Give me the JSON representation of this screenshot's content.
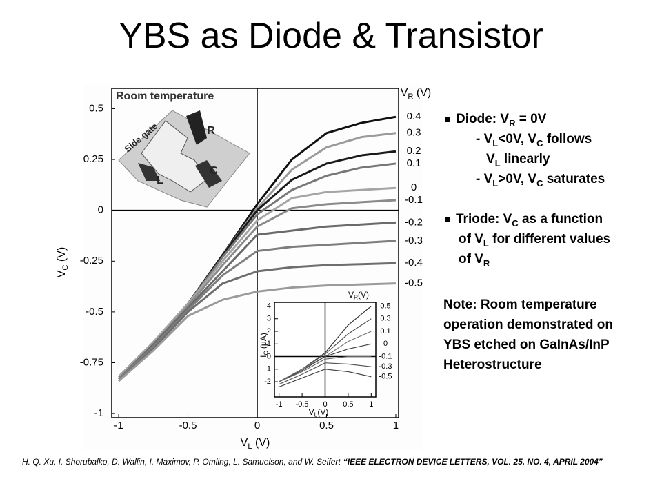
{
  "title": "YBS as Diode & Transistor",
  "bullets": [
    {
      "lines": [
        [
          "Diode: V",
          {
            "sub": "R"
          },
          " = 0V"
        ],
        [
          "- V",
          {
            "sub": "L"
          },
          "<0V, V",
          {
            "sub": "C"
          },
          " follows"
        ],
        [
          "V",
          {
            "sub": "L"
          },
          " linearly"
        ],
        [
          "- V",
          {
            "sub": "L"
          },
          ">0V, V",
          {
            "sub": "C"
          },
          " saturates"
        ]
      ]
    },
    {
      "lines": [
        [
          "Triode: V",
          {
            "sub": "C"
          },
          " as a function"
        ],
        [
          "of V",
          {
            "sub": "L"
          },
          " for different values"
        ],
        [
          "of V",
          {
            "sub": "R"
          }
        ]
      ]
    }
  ],
  "note": [
    "Note: Room temperature",
    "operation demonstrated on",
    "YBS etched on GaInAs/InP",
    "Heterostructure"
  ],
  "citation": {
    "authors": "H. Q. Xu, I. Shorubalko, D. Wallin, I. Maximov, P. Omling, L. Samuelson, and W. Seifert",
    "source": "“IEEE ELECTRON DEVICE LETTERS, VOL. 25, NO. 4, APRIL 2004”"
  },
  "chart_data": [
    {
      "type": "line",
      "annotation": "Room temperature",
      "device_labels": [
        "Side gate",
        "R",
        "L",
        "C"
      ],
      "legend_title": [
        "V",
        {
          "sub": "R"
        },
        " (V)"
      ],
      "xlabel": [
        "V",
        {
          "sub": "L"
        },
        " (V)"
      ],
      "ylabel": [
        "V",
        {
          "sub": "C"
        },
        " (V)"
      ],
      "xlim": [
        -1.05,
        1.02
      ],
      "ylim": [
        -1.02,
        0.6
      ],
      "xticks": [
        -1,
        -0.5,
        0,
        0.5,
        1
      ],
      "yticks": [
        0.5,
        0.25,
        0,
        -0.25,
        -0.5,
        -0.75,
        -1
      ],
      "x": [
        -1,
        -0.75,
        -0.5,
        -0.25,
        0,
        0.25,
        0.5,
        0.75,
        1
      ],
      "series": [
        {
          "name": "0.4",
          "color": "#111111",
          "values": [
            -0.82,
            -0.65,
            -0.46,
            -0.22,
            0.03,
            0.25,
            0.38,
            0.43,
            0.46
          ]
        },
        {
          "name": "0.3",
          "color": "#9a9a9a",
          "values": [
            -0.82,
            -0.65,
            -0.46,
            -0.22,
            0.01,
            0.2,
            0.31,
            0.36,
            0.38
          ]
        },
        {
          "name": "0.2",
          "color": "#1a1a1a",
          "values": [
            -0.82,
            -0.65,
            -0.46,
            -0.22,
            0.0,
            0.15,
            0.23,
            0.27,
            0.29
          ]
        },
        {
          "name": "0.1",
          "color": "#777777",
          "values": [
            -0.82,
            -0.65,
            -0.46,
            -0.23,
            -0.02,
            0.1,
            0.17,
            0.21,
            0.23
          ]
        },
        {
          "name": "0",
          "color": "#a5a5a5",
          "values": [
            -0.82,
            -0.65,
            -0.46,
            -0.25,
            -0.05,
            0.06,
            0.09,
            0.1,
            0.11
          ]
        },
        {
          "name": "-0.1",
          "color": "#8a8a8a",
          "values": [
            -0.83,
            -0.66,
            -0.47,
            -0.27,
            -0.08,
            0.01,
            0.03,
            0.04,
            0.05
          ]
        },
        {
          "name": "-0.2",
          "color": "#6a6a6a",
          "values": [
            -0.83,
            -0.66,
            -0.48,
            -0.3,
            -0.12,
            -0.1,
            -0.08,
            -0.07,
            -0.06
          ]
        },
        {
          "name": "-0.3",
          "color": "#7e7e7e",
          "values": [
            -0.83,
            -0.67,
            -0.49,
            -0.32,
            -0.2,
            -0.18,
            -0.17,
            -0.16,
            -0.15
          ]
        },
        {
          "name": "-0.4",
          "color": "#6e6e6e",
          "values": [
            -0.84,
            -0.68,
            -0.5,
            -0.36,
            -0.3,
            -0.28,
            -0.27,
            -0.265,
            -0.26
          ]
        },
        {
          "name": "-0.5",
          "color": "#9a9a9a",
          "values": [
            -0.84,
            -0.69,
            -0.52,
            -0.44,
            -0.4,
            -0.38,
            -0.37,
            -0.365,
            -0.36
          ]
        }
      ]
    },
    {
      "type": "line",
      "legend_title": [
        "V",
        {
          "sub": "R"
        },
        "(V)"
      ],
      "xlabel": [
        "V",
        {
          "sub": "L"
        },
        "(V)"
      ],
      "ylabel": [
        "I",
        {
          "sub": "C"
        },
        " (μA)"
      ],
      "xlim": [
        -1.1,
        1.1
      ],
      "ylim": [
        -3.2,
        4.3
      ],
      "xticks": [
        -1,
        -0.5,
        0,
        0.5,
        1
      ],
      "yticks": [
        4,
        3,
        2,
        1,
        0,
        -1,
        -2
      ],
      "x": [
        -1,
        -0.5,
        0,
        0.5,
        1
      ],
      "series": [
        {
          "name": "0.5",
          "color": "#333333",
          "values": [
            -2,
            -1,
            0.3,
            2.5,
            4
          ]
        },
        {
          "name": "0.3",
          "color": "#555555",
          "values": [
            -2,
            -1,
            0.2,
            1.8,
            3
          ]
        },
        {
          "name": "0.1",
          "color": "#777777",
          "values": [
            -2,
            -1,
            0,
            1.2,
            2
          ]
        },
        {
          "name": "0",
          "color": "#444444",
          "values": [
            -2,
            -1.1,
            0,
            0.6,
            1
          ]
        },
        {
          "name": "-0.1",
          "color": "#666666",
          "values": [
            -2,
            -1.2,
            -0.2,
            0,
            0
          ]
        },
        {
          "name": "-0.3",
          "color": "#555555",
          "values": [
            -2.2,
            -1.4,
            -0.5,
            -0.6,
            -0.8
          ]
        },
        {
          "name": "-0.5",
          "color": "#444444",
          "values": [
            -2.4,
            -1.7,
            -1,
            -1.2,
            -1.6
          ]
        }
      ]
    }
  ]
}
